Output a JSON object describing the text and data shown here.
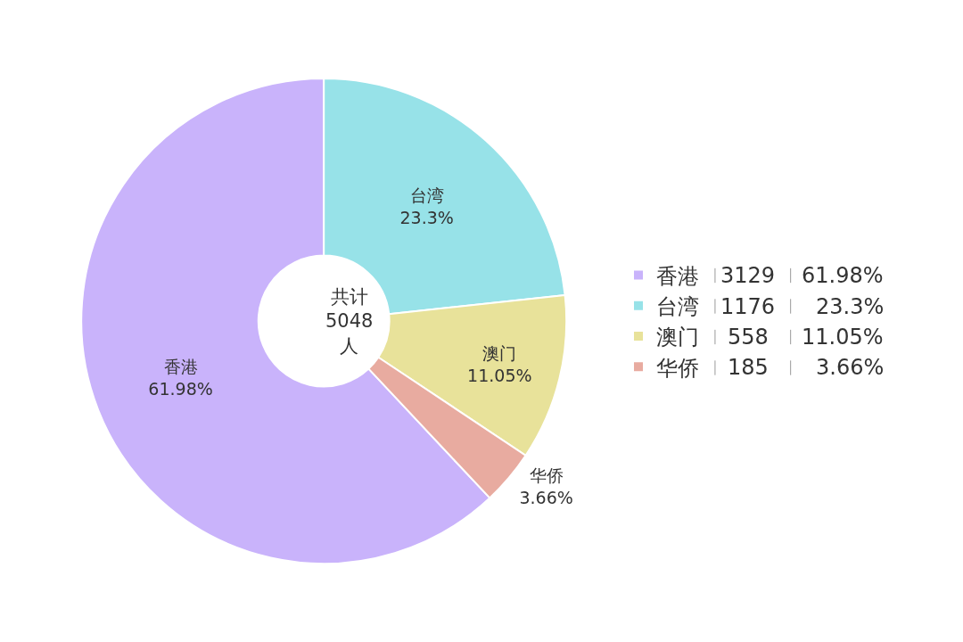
{
  "chart_data": {
    "type": "donut",
    "categories": [
      "香港",
      "台湾",
      "澳门",
      "华侨"
    ],
    "values": [
      61.98,
      23.3,
      11.05,
      3.66
    ],
    "colors": [
      "#c9b3fb",
      "#97e2e8",
      "#e8e29a",
      "#e8aba0"
    ],
    "value_labels": [
      "61.98%",
      "23.3%",
      "11.05%",
      "3.66%"
    ],
    "annotations": [
      "共计\n5048\n人",
      "3129",
      "1176",
      "558",
      "185"
    ],
    "legend": "right"
  }
}
